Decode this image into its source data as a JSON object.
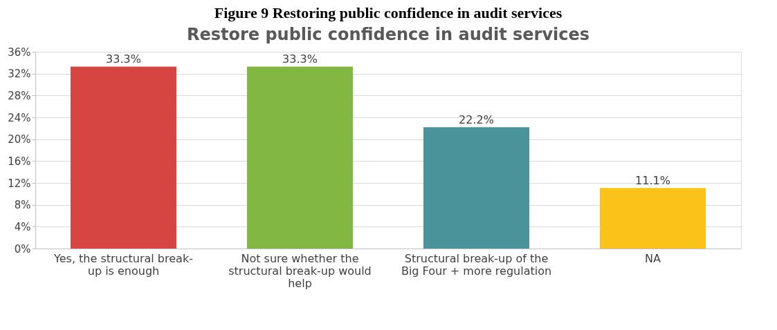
{
  "chart_data": {
    "type": "bar",
    "title": "Figure 9 Restoring public confidence in audit services",
    "subtitle": "Restore public confidence in audit services",
    "categories": [
      "Yes, the structural break-up is enough",
      "Not sure whether the structural break-up would help",
      "Structural break-up of the Big Four + more regulation",
      "NA"
    ],
    "values": [
      33.3,
      33.3,
      22.2,
      11.1
    ],
    "colors": [
      "#d64541",
      "#82b741",
      "#4a939b",
      "#fbc31a"
    ],
    "value_labels": [
      "33.3%",
      "33.3%",
      "22.2%",
      "11.1%"
    ],
    "ylim": [
      0,
      36
    ],
    "yticks": [
      {
        "value": 0,
        "label": "0%"
      },
      {
        "value": 4,
        "label": "4%"
      },
      {
        "value": 8,
        "label": "8%"
      },
      {
        "value": 12,
        "label": "12%"
      },
      {
        "value": 16,
        "label": "16%"
      },
      {
        "value": 20,
        "label": "20%"
      },
      {
        "value": 24,
        "label": "24%"
      },
      {
        "value": 28,
        "label": "28%"
      },
      {
        "value": 32,
        "label": "32%"
      },
      {
        "value": 36,
        "label": "36%"
      }
    ],
    "grid": "y"
  }
}
